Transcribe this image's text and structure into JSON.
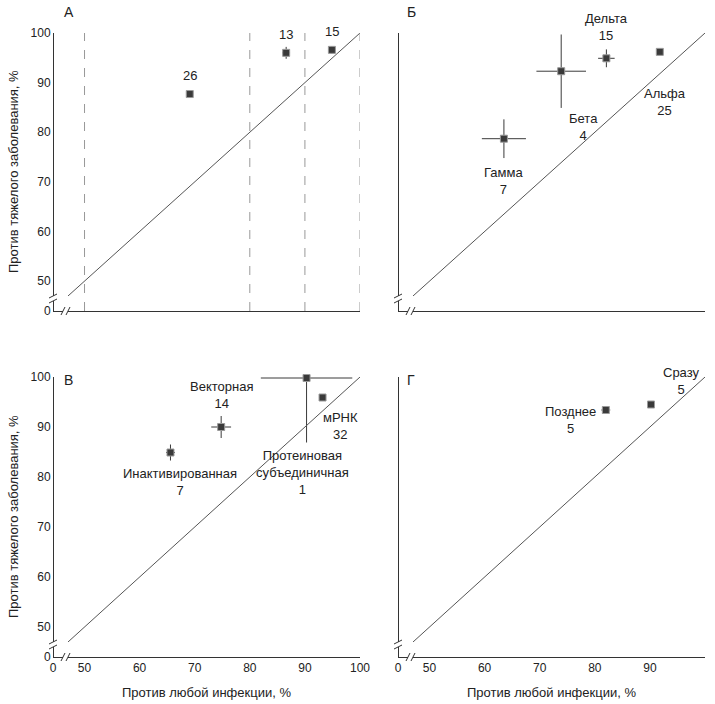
{
  "chart_data": [
    {
      "type": "scatter",
      "title": "А",
      "ylabel": "Против тяжелого заболевания, %",
      "xlim": [
        0,
        100
      ],
      "ylim": [
        0,
        100
      ],
      "xticks": [
        0,
        50,
        60,
        70,
        80,
        90,
        100
      ],
      "yticks": [
        0,
        50,
        60,
        70,
        80,
        90,
        100
      ],
      "tick_labels": "y",
      "vlines": {
        "x": [
          50,
          80,
          90,
          100
        ],
        "line_style": "dashed",
        "color": "#999999"
      },
      "series": [
        {
          "type": "scatter",
          "marker": "square",
          "color": "#3a3a3a",
          "x": [
            69.1,
            86.6,
            94.9
          ],
          "values": [
            87.7,
            96.0,
            96.6
          ],
          "x_error": [
            0.5,
            0.7,
            0.6
          ],
          "y_error": [
            0.7,
            1.2,
            0.7
          ],
          "labels": [
            "26",
            "13",
            "15"
          ]
        },
        {
          "type": "line",
          "line_style": "solid",
          "color": "#555555",
          "x": [
            0,
            100
          ],
          "values": [
            0,
            100
          ]
        }
      ]
    },
    {
      "type": "scatter",
      "title": "Б",
      "xlim": [
        0,
        100
      ],
      "ylim": [
        0,
        100
      ],
      "xticks": [
        0,
        50,
        60,
        70,
        80,
        90,
        100
      ],
      "yticks": [
        0,
        50,
        60,
        70,
        80,
        90,
        100
      ],
      "tick_labels": false,
      "series": [
        {
          "type": "scatter",
          "marker": "square",
          "color": "#3a3a3a",
          "x": [
            63.5,
            73.9,
            82.1,
            91.8
          ],
          "values": [
            78.7,
            92.3,
            94.9,
            96.2
          ],
          "x_error": [
            4.0,
            4.5,
            1.5,
            0.5
          ],
          "y_error": [
            3.9,
            7.4,
            1.8,
            0.5
          ],
          "labels": [
            "Гамма\n7",
            "Бета\n4",
            "Дельта\n15",
            "Альфа\n25"
          ]
        },
        {
          "type": "line",
          "line_style": "solid",
          "color": "#555555",
          "x": [
            0,
            100
          ],
          "values": [
            0,
            100
          ]
        }
      ]
    },
    {
      "type": "scatter",
      "title": "В",
      "xlabel": "Против любой инфекции, %",
      "ylabel": "Против тяжелого заболевания, %",
      "xlim": [
        0,
        100
      ],
      "ylim": [
        0,
        100
      ],
      "xticks": [
        0,
        50,
        60,
        70,
        80,
        90,
        100
      ],
      "yticks": [
        0,
        50,
        60,
        70,
        80,
        90,
        100
      ],
      "tick_labels": true,
      "series": [
        {
          "type": "scatter",
          "marker": "square",
          "color": "#3a3a3a",
          "x": [
            65.6,
            74.8,
            90.3,
            93.2
          ],
          "values": [
            84.9,
            90.0,
            99.8,
            95.9
          ],
          "x_error": [
            0.8,
            1.8,
            8.3,
            0.6
          ],
          "y_error": [
            1.6,
            2.2,
            0.2,
            0.7
          ],
          "y_error_minus": [
            1.6,
            2.2,
            12.9,
            0.7
          ],
          "labels": [
            "Инактивированная\n7",
            "Векторная\n14",
            "Протеиновая\nсубъединичная\n1",
            "мРНК\n32"
          ]
        },
        {
          "type": "line",
          "line_style": "solid",
          "color": "#555555",
          "x": [
            0,
            100
          ],
          "values": [
            0,
            100
          ]
        }
      ]
    },
    {
      "type": "scatter",
      "title": "Г",
      "xlabel": "Против любой инфекции, %",
      "xlim": [
        0,
        100
      ],
      "ylim": [
        0,
        100
      ],
      "xticks": [
        0,
        50,
        60,
        70,
        80,
        90,
        100
      ],
      "yticks": [
        0,
        50,
        60,
        70,
        80,
        90,
        100
      ],
      "tick_labels": "x",
      "series": [
        {
          "type": "scatter",
          "marker": "square",
          "color": "#3a3a3a",
          "x": [
            82.0,
            90.2
          ],
          "values": [
            93.4,
            94.5
          ],
          "x_error": [
            0.8,
            0.6
          ],
          "y_error": [
            0.6,
            0.7
          ],
          "labels": [
            "Позднее\n5",
            "Сразу\n5"
          ]
        },
        {
          "type": "line",
          "line_style": "solid",
          "color": "#555555",
          "x": [
            0,
            100
          ],
          "values": [
            0,
            100
          ]
        }
      ]
    }
  ]
}
